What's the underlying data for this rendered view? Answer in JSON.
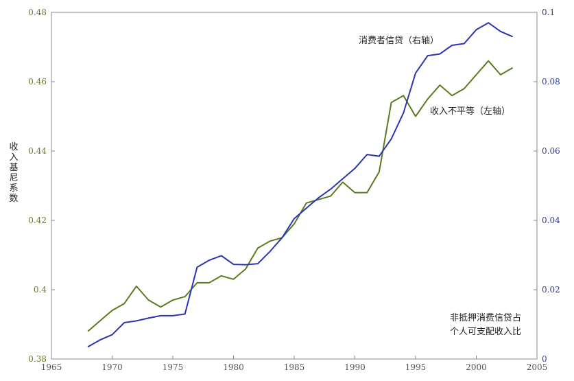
{
  "chart_data": {
    "type": "line",
    "title": "",
    "xlabel": "",
    "ylabel_left": "收入基尼系数",
    "ylabel_right": "",
    "xlim": [
      1965,
      2005
    ],
    "ylim_left": [
      0.38,
      0.48
    ],
    "ylim_right": [
      0,
      0.1
    ],
    "x_ticks": [
      "1965",
      "1970",
      "1975",
      "1980",
      "1985",
      "1990",
      "1995",
      "2000",
      "2005"
    ],
    "y_ticks_left": [
      "0.38",
      "0.4",
      "0.42",
      "0.44",
      "0.46",
      "0.48"
    ],
    "y_ticks_right": [
      "0",
      "0.02",
      "0.04",
      "0.06",
      "0.08",
      "0.1"
    ],
    "grid": false,
    "colors": {
      "left_axis": "#6b7d2a",
      "right_axis": "#2b3a9c",
      "gini": "#5a7a1e",
      "credit": "#2b34b0"
    },
    "annotations": {
      "credit_label": "消费者信贷（右轴）",
      "gini_label": "收入不平等（左轴）",
      "note_line1": "非抵押消费信贷占",
      "note_line2": "个人可支配收入比"
    },
    "series": [
      {
        "name": "收入不平等（左轴）",
        "axis": "left",
        "x": [
          1968,
          1969,
          1970,
          1971,
          1972,
          1973,
          1974,
          1975,
          1976,
          1977,
          1978,
          1979,
          1980,
          1981,
          1982,
          1983,
          1984,
          1985,
          1986,
          1987,
          1988,
          1989,
          1990,
          1991,
          1992,
          1993,
          1994,
          1995,
          1996,
          1997,
          1998,
          1999,
          2000,
          2001,
          2002,
          2003
        ],
        "values": [
          0.388,
          0.391,
          0.394,
          0.396,
          0.401,
          0.397,
          0.395,
          0.397,
          0.398,
          0.402,
          0.402,
          0.404,
          0.403,
          0.406,
          0.412,
          0.414,
          0.415,
          0.419,
          0.425,
          0.426,
          0.427,
          0.431,
          0.428,
          0.428,
          0.434,
          0.454,
          0.456,
          0.45,
          0.455,
          0.459,
          0.456,
          0.458,
          0.462,
          0.466,
          0.462,
          0.464
        ]
      },
      {
        "name": "消费者信贷（右轴）",
        "axis": "right",
        "x": [
          1968,
          1969,
          1970,
          1971,
          1972,
          1973,
          1974,
          1975,
          1976,
          1977,
          1978,
          1979,
          1980,
          1981,
          1982,
          1983,
          1984,
          1985,
          1986,
          1987,
          1988,
          1989,
          1990,
          1991,
          1992,
          1993,
          1994,
          1995,
          1996,
          1997,
          1998,
          1999,
          2000,
          2001,
          2002,
          2003
        ],
        "values": [
          0.0035,
          0.0055,
          0.007,
          0.0105,
          0.011,
          0.0118,
          0.0125,
          0.0125,
          0.013,
          0.0265,
          0.0285,
          0.0298,
          0.0273,
          0.0272,
          0.0275,
          0.031,
          0.035,
          0.0405,
          0.0435,
          0.0465,
          0.049,
          0.052,
          0.055,
          0.059,
          0.0585,
          0.0635,
          0.071,
          0.0825,
          0.0875,
          0.088,
          0.0905,
          0.091,
          0.095,
          0.097,
          0.0945,
          0.093
        ]
      }
    ]
  }
}
